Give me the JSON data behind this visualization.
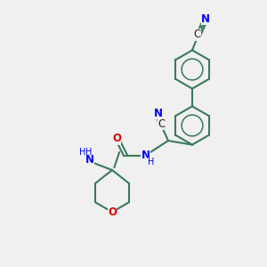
{
  "bg_color": "#f0f0f0",
  "bond_color": "#3a7a5a",
  "atom_colors": {
    "N": "#0000ee",
    "O": "#dd0000",
    "C": "#222222"
  },
  "lw": 1.5,
  "dbo": 0.055,
  "fs": 8.5,
  "fs_small": 7.0,
  "xlim": [
    0,
    10
  ],
  "ylim": [
    0,
    10
  ]
}
